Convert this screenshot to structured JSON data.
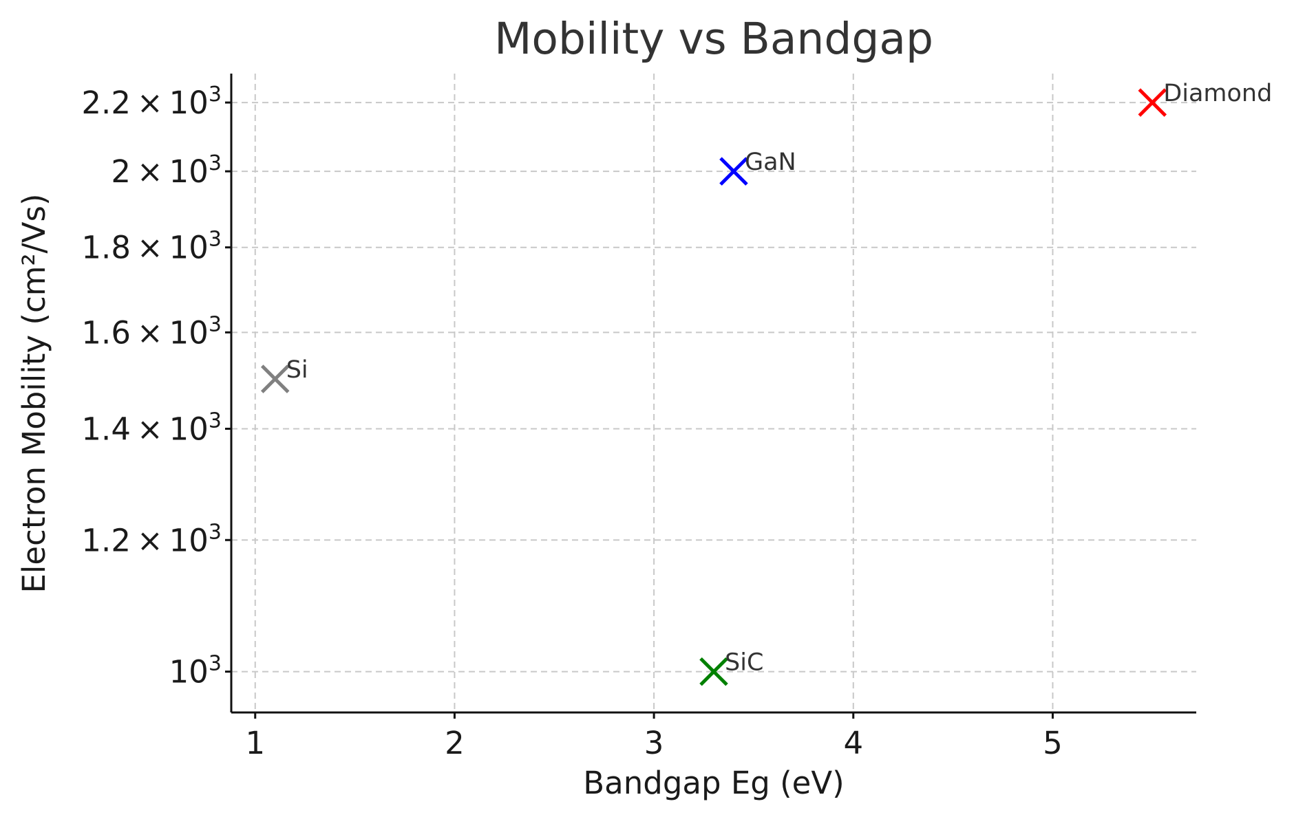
{
  "chart_data": {
    "type": "scatter",
    "title": "Mobility vs Bandgap",
    "xlabel": "Bandgap Eg (eV)",
    "ylabel": "Electron Mobility (cm²/Vs)",
    "xlim": [
      0.88,
      5.72
    ],
    "ylim": [
      945,
      2290
    ],
    "yscale": "log",
    "grid": true,
    "x_ticks": [
      {
        "value": 1,
        "label": "1"
      },
      {
        "value": 2,
        "label": "2"
      },
      {
        "value": 3,
        "label": "3"
      },
      {
        "value": 4,
        "label": "4"
      },
      {
        "value": 5,
        "label": "5"
      }
    ],
    "y_ticks": [
      {
        "value": 1000,
        "mantissa": "",
        "exponent": "3"
      },
      {
        "value": 1200,
        "mantissa": "1.2",
        "exponent": "3"
      },
      {
        "value": 1400,
        "mantissa": "1.4",
        "exponent": "3"
      },
      {
        "value": 1600,
        "mantissa": "1.6",
        "exponent": "3"
      },
      {
        "value": 1800,
        "mantissa": "1.8",
        "exponent": "3"
      },
      {
        "value": 2000,
        "mantissa": "2",
        "exponent": "3"
      },
      {
        "value": 2200,
        "mantissa": "2.2",
        "exponent": "3"
      }
    ],
    "points": [
      {
        "label": "Si",
        "x": 1.1,
        "y": 1500,
        "color": "#808080"
      },
      {
        "label": "GaN",
        "x": 3.4,
        "y": 2000,
        "color": "#0000ff"
      },
      {
        "label": "SiC",
        "x": 3.3,
        "y": 1000,
        "color": "#008000"
      },
      {
        "label": "Diamond",
        "x": 5.5,
        "y": 2200,
        "color": "#ff0000"
      }
    ],
    "marker": "x"
  }
}
